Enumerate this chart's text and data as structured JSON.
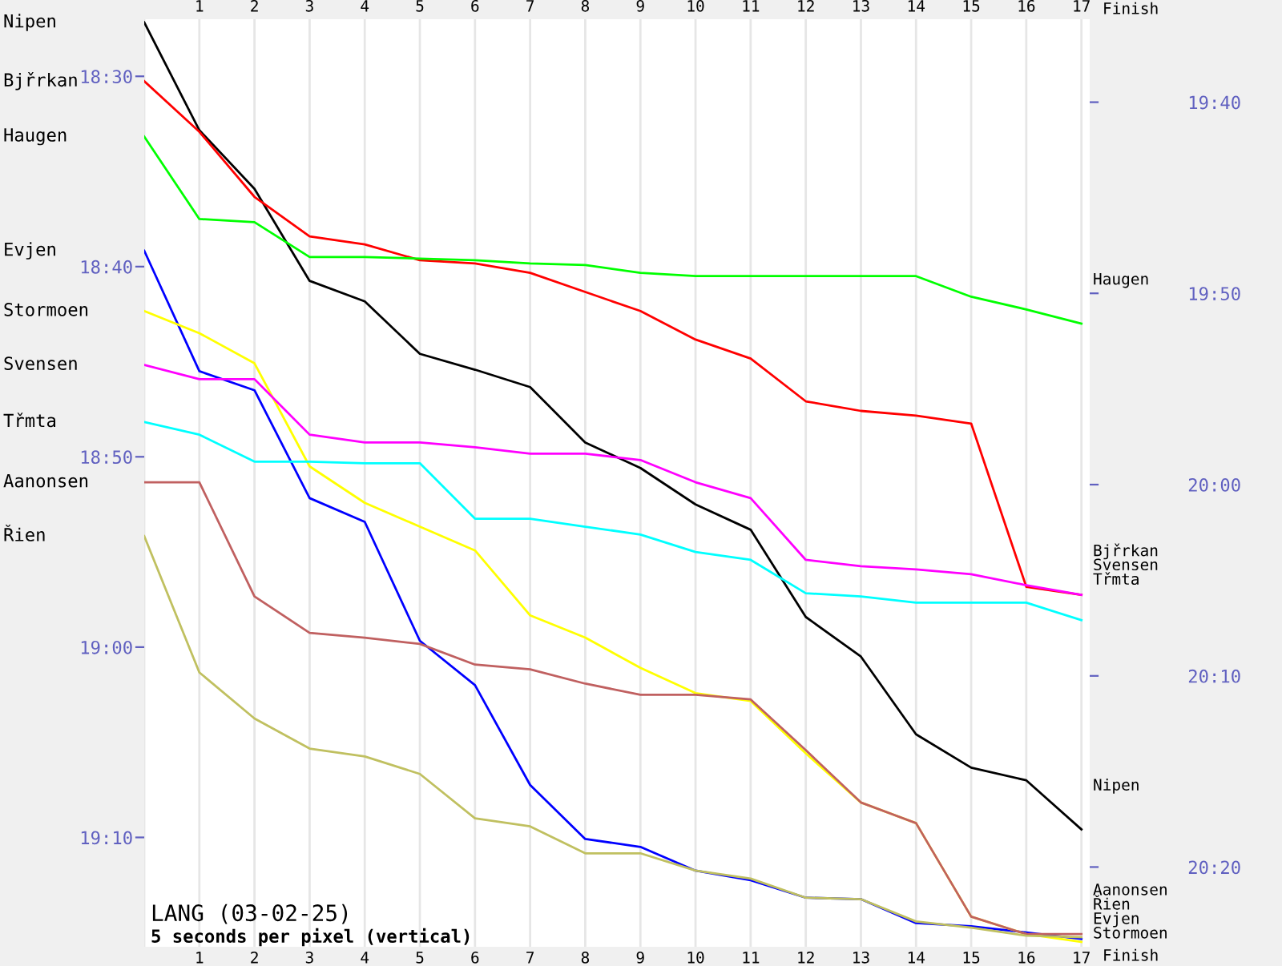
{
  "chart_data": {
    "type": "line",
    "annotations": [
      "LANG (03-02-25)",
      "5 seconds per pixel (vertical)",
      "Finish",
      "Finish"
    ],
    "categories": [
      null,
      "1",
      "2",
      "3",
      "4",
      "5",
      "6",
      "7",
      "8",
      "9",
      "10",
      "11",
      "12",
      "13",
      "14",
      "15",
      "16",
      "17"
    ],
    "ylim": [
      19.2625,
      18.45
    ],
    "yticks": [
      {
        "value": 18.5,
        "label": "18:30"
      },
      {
        "value": 18.6667,
        "label": "18:40"
      },
      {
        "value": 18.8333,
        "label": "18:50"
      },
      {
        "value": 19.0,
        "label": "19:00"
      },
      {
        "value": 19.1667,
        "label": "19:10"
      }
    ],
    "y2lim": [
      20.4028,
      19.5944
    ],
    "y2ticks": [
      {
        "value": 19.6667,
        "label": "19:40"
      },
      {
        "value": 19.8333,
        "label": "19:50"
      },
      {
        "value": 20.0,
        "label": "20:00"
      },
      {
        "value": 20.1667,
        "label": "20:10"
      },
      {
        "value": 20.3333,
        "label": "20:20"
      }
    ],
    "grid": "x",
    "legend": false,
    "series": [
      {
        "name": "Nipen",
        "color": "#000000",
        "values": [
          18.4528,
          18.5472,
          18.5986,
          18.6792,
          18.6972,
          18.7431,
          18.757,
          18.7722,
          18.8208,
          18.8431,
          18.875,
          18.8972,
          18.9736,
          19.0083,
          19.0764,
          19.1056,
          19.1167,
          19.1597
        ]
      },
      {
        "name": "Bjřrkan",
        "color": "#ff0000",
        "values": [
          18.5042,
          18.5486,
          18.6056,
          18.6403,
          18.6472,
          18.6611,
          18.6639,
          18.6722,
          18.6889,
          18.7056,
          18.7306,
          18.7472,
          18.7847,
          18.7931,
          18.7972,
          18.8042,
          18.9472,
          18.9542
        ]
      },
      {
        "name": "Haugen",
        "color": "#00ff00",
        "values": [
          18.5528,
          18.625,
          18.6278,
          18.6583,
          18.6583,
          18.6597,
          18.6611,
          18.6639,
          18.6653,
          18.6722,
          18.675,
          18.675,
          18.675,
          18.675,
          18.675,
          18.6931,
          18.7042,
          18.7167
        ]
      },
      {
        "name": "Evjen",
        "color": "#0000ff",
        "values": [
          18.6528,
          18.7583,
          18.775,
          18.8695,
          18.8903,
          18.9945,
          19.0333,
          19.1208,
          19.1681,
          19.175,
          19.1958,
          19.2042,
          19.2195,
          19.2208,
          19.2417,
          19.2445,
          19.25,
          19.2556
        ]
      },
      {
        "name": "Stormoen",
        "color": "#ffff00",
        "values": [
          18.7056,
          18.725,
          18.7514,
          18.8417,
          18.8736,
          18.8945,
          18.9153,
          18.9722,
          18.9917,
          19.0181,
          19.0403,
          19.0472,
          19.0931,
          19.1361,
          19.1542,
          19.2361,
          19.2514,
          19.2583
        ]
      },
      {
        "name": "Svensen",
        "color": "#ff00ff",
        "values": [
          18.7528,
          18.7653,
          18.7653,
          18.8139,
          18.8208,
          18.8208,
          18.825,
          18.8306,
          18.8306,
          18.8361,
          18.8556,
          18.8695,
          18.9236,
          18.9292,
          18.932,
          18.9361,
          18.9458,
          18.9542
        ]
      },
      {
        "name": "Třmta",
        "color": "#00ffff",
        "values": [
          18.8028,
          18.8139,
          18.8375,
          18.8375,
          18.8389,
          18.8389,
          18.8875,
          18.8875,
          18.8945,
          18.9014,
          18.9167,
          18.9236,
          18.9528,
          18.9556,
          18.9611,
          18.9611,
          18.9611,
          18.9764
        ]
      },
      {
        "name": "Aanonsen",
        "color": "#c06060",
        "values": [
          18.8556,
          18.8556,
          18.9556,
          18.9875,
          18.9917,
          18.9972,
          19.0153,
          19.0195,
          19.032,
          19.0417,
          19.0417,
          19.0458,
          19.0903,
          19.1361,
          19.1542,
          19.2361,
          19.2514,
          19.2514
        ]
      },
      {
        "name": "Řien",
        "color": "#c0c060",
        "values": [
          18.9028,
          19.0222,
          19.0625,
          19.0889,
          19.0958,
          19.1111,
          19.15,
          19.157,
          19.1806,
          19.1806,
          19.1958,
          19.2028,
          19.2195,
          19.2208,
          19.2403,
          19.2458,
          19.2528,
          19.2542
        ]
      }
    ]
  }
}
